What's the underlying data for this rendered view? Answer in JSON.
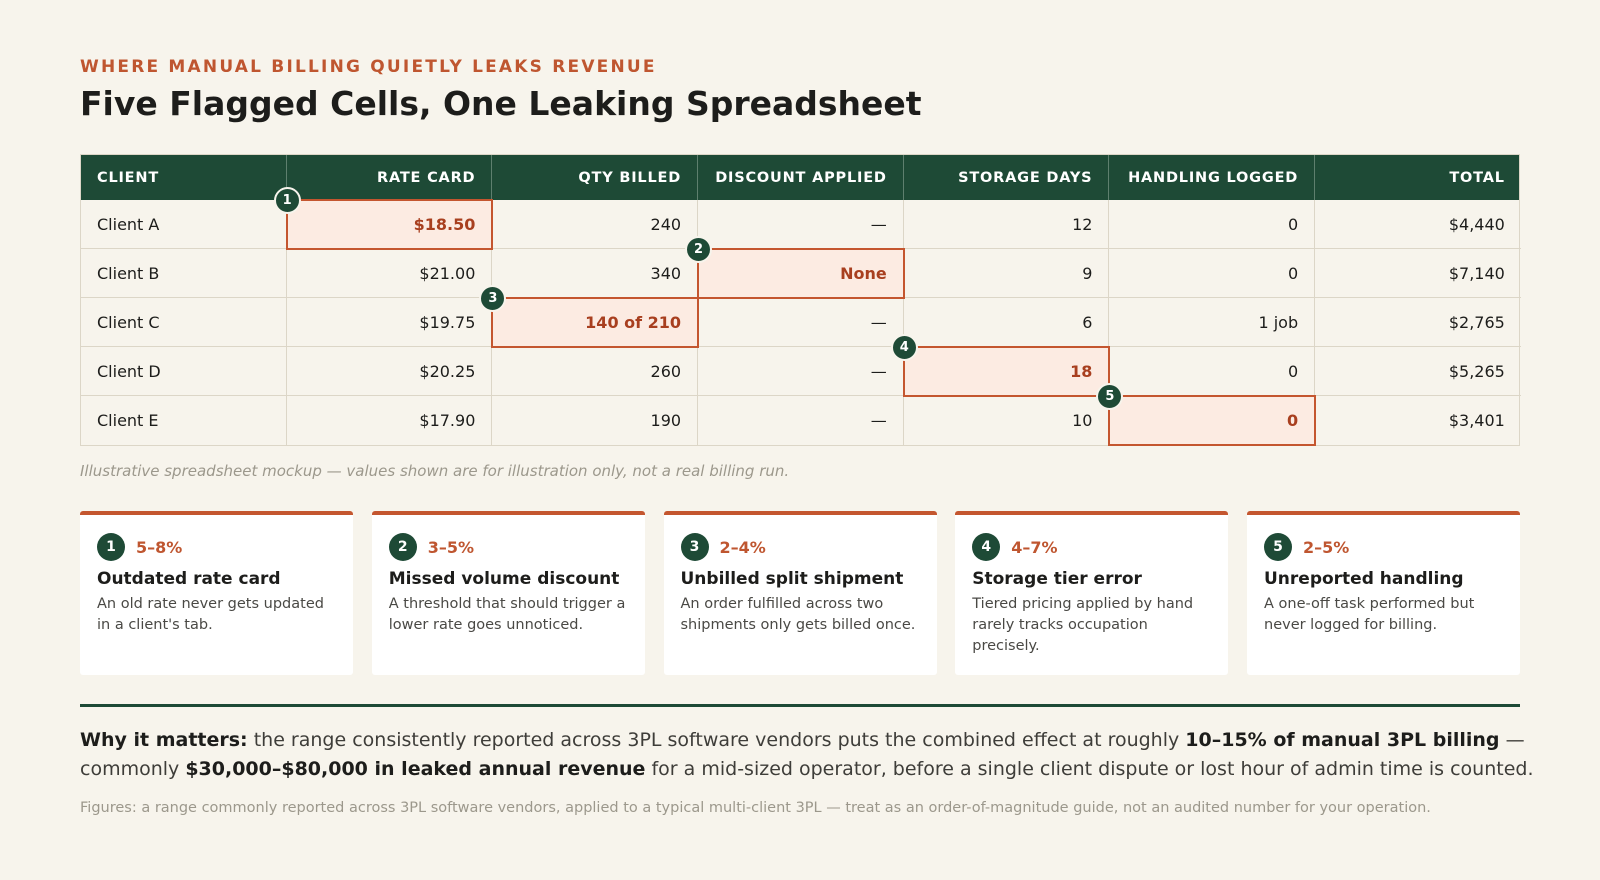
{
  "eyebrow": "WHERE MANUAL BILLING QUIETLY LEAKS REVENUE",
  "title": "Five Flagged Cells, One Leaking Spreadsheet",
  "table": {
    "headers": [
      "CLIENT",
      "RATE CARD",
      "QTY BILLED",
      "DISCOUNT APPLIED",
      "STORAGE DAYS",
      "HANDLING LOGGED",
      "TOTAL"
    ],
    "rows": [
      [
        "Client A",
        "$18.50",
        "240",
        "—",
        "12",
        "0",
        "$4,440"
      ],
      [
        "Client B",
        "$21.00",
        "340",
        "None",
        "9",
        "0",
        "$7,140"
      ],
      [
        "Client C",
        "$19.75",
        "140 of 210",
        "—",
        "6",
        "1 job",
        "$2,765"
      ],
      [
        "Client D",
        "$20.25",
        "260",
        "—",
        "18",
        "0",
        "$5,265"
      ],
      [
        "Client E",
        "$17.90",
        "190",
        "—",
        "10",
        "0",
        "$3,401"
      ]
    ],
    "flags": [
      {
        "number": "1",
        "row": 0,
        "col": 1
      },
      {
        "number": "2",
        "row": 1,
        "col": 3
      },
      {
        "number": "3",
        "row": 2,
        "col": 2
      },
      {
        "number": "4",
        "row": 3,
        "col": 4
      },
      {
        "number": "5",
        "row": 4,
        "col": 5
      }
    ],
    "colors": {
      "header_bg": "#1e4a36",
      "flag_border": "#c4562f",
      "flag_fill": "#fcebe2"
    }
  },
  "note": "Illustrative spreadsheet mockup — values shown are for illustration only, not a real billing run.",
  "cards": [
    {
      "number": "1",
      "range": "5–8%",
      "title": "Outdated rate card",
      "desc": "An old rate never gets updated in a client's tab."
    },
    {
      "number": "2",
      "range": "3–5%",
      "title": "Missed volume discount",
      "desc": "A threshold that should trigger a lower rate goes unnoticed."
    },
    {
      "number": "3",
      "range": "2–4%",
      "title": "Unbilled split shipment",
      "desc": "An order fulfilled across two shipments only gets billed once."
    },
    {
      "number": "4",
      "range": "4–7%",
      "title": "Storage tier error",
      "desc": "Tiered pricing applied by hand rarely tracks occupation precisely."
    },
    {
      "number": "5",
      "range": "2–5%",
      "title": "Unreported handling",
      "desc": "A one-off task performed but never logged for billing."
    }
  ],
  "why": {
    "lead": "Why it matters:",
    "text1": " the range consistently reported across 3PL software vendors puts the combined effect at roughly ",
    "bold1": "10–15% of manual 3PL billing",
    "text2": " — commonly ",
    "bold2": "$30,000–$80,000 in leaked annual revenue",
    "text3": " for a mid-sized operator, before a single client dispute or lost hour of admin time is counted."
  },
  "footnote": "Figures: a range commonly reported across 3PL software vendors, applied to a typical multi-client 3PL — treat as an order-of-magnitude guide, not an audited number for your operation."
}
